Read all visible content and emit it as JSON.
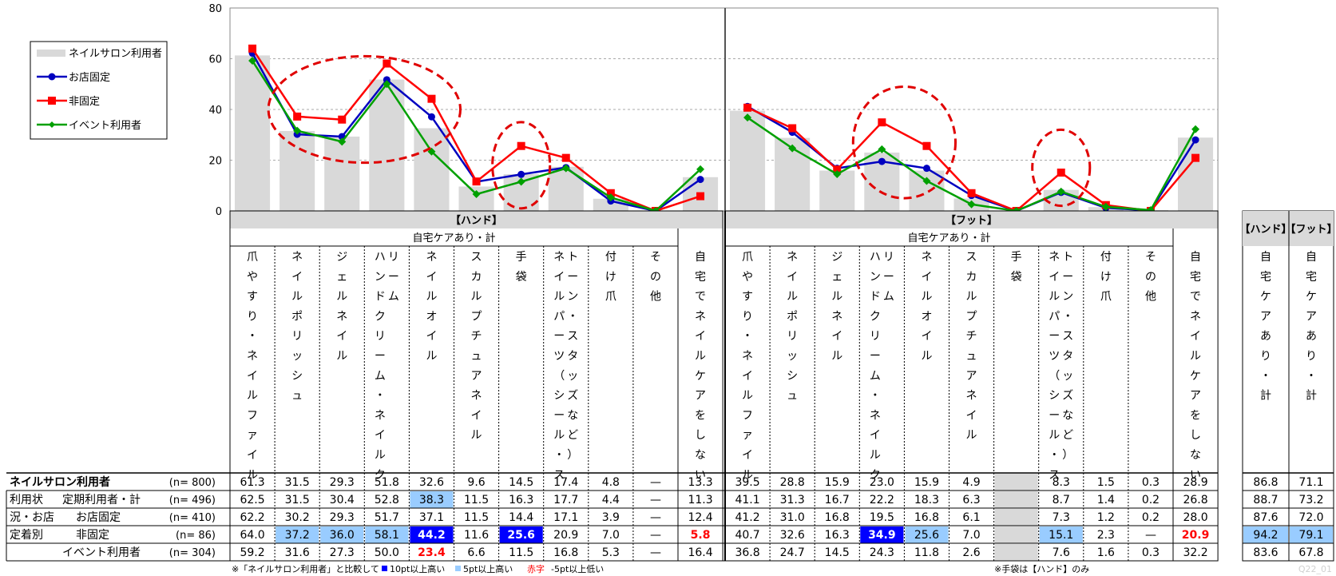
{
  "chart_data": {
    "type": "bar",
    "ylim": [
      0,
      80
    ],
    "yticks": [
      0,
      20,
      40,
      60,
      80
    ],
    "grid": true,
    "legend_position": "top-left",
    "legend": {
      "bar": "ネイルサロン利用者",
      "lines": [
        "お店固定",
        "非固定",
        "イベント利用者"
      ]
    },
    "colors": {
      "bar": "#d9d9d9",
      "fixed": "#0000c0",
      "nonfixed": "#ff0000",
      "event": "#00a000"
    },
    "sections": [
      {
        "header": "【ハンド】",
        "subheader": "自宅ケアあり・計",
        "categories": [
          "爪やすり・ネイルファイル",
          "ネイルポリッシュ",
          "ジェルネイル",
          "ハンドクリーム・ネイルクリーム",
          "ネイルオイル",
          "スカルプチュアネイル",
          "手袋",
          "ネイルパーツ（シール・ストーン・スタッズなど）",
          "付け爪",
          "その他",
          "自宅でネイルケアをしない"
        ],
        "labels_v": [
          [
            "爪やすり・ネイルファイル"
          ],
          [
            "ネイルポリッシュ"
          ],
          [
            "ジェルネイル"
          ],
          [
            "ハンドクリーム・ネイルク",
            "リーム"
          ],
          [
            "ネイルオイル"
          ],
          [
            "スカルプチュアネイル"
          ],
          [
            "手袋"
          ],
          [
            "ネイルパーツ（シール・ス",
            "トーン・スタッズなど）"
          ],
          [
            "付け爪"
          ],
          [
            "その他"
          ],
          [
            "自宅でネイルケアをしない"
          ]
        ],
        "series": {
          "salon": [
            61.3,
            31.5,
            29.3,
            51.8,
            32.6,
            9.6,
            14.5,
            17.4,
            4.8,
            null,
            13.3
          ],
          "regular": [
            62.5,
            31.5,
            30.4,
            52.8,
            38.3,
            11.5,
            16.3,
            17.7,
            4.4,
            null,
            11.3
          ],
          "fixed": [
            62.2,
            30.2,
            29.3,
            51.7,
            37.1,
            11.5,
            14.4,
            17.1,
            3.9,
            null,
            12.4
          ],
          "nonfixed": [
            64.0,
            37.2,
            36.0,
            58.1,
            44.2,
            11.6,
            25.6,
            20.9,
            7.0,
            null,
            5.8
          ],
          "event": [
            59.2,
            31.6,
            27.3,
            50.0,
            23.4,
            6.6,
            11.5,
            16.8,
            5.3,
            null,
            16.4
          ]
        },
        "line_values": {
          "fixed": [
            62.2,
            30.2,
            29.3,
            51.7,
            37.1,
            11.5,
            14.4,
            17.1,
            3.9,
            0,
            12.4
          ],
          "nonfixed": [
            64.0,
            37.2,
            36.0,
            58.1,
            44.2,
            11.6,
            25.6,
            20.9,
            7.0,
            0,
            5.8
          ],
          "event": [
            59.2,
            31.6,
            27.3,
            50.0,
            23.4,
            6.6,
            11.5,
            16.8,
            5.3,
            0,
            16.4
          ]
        },
        "highlights": {
          "regular": [
            "",
            "",
            "",
            "",
            "light",
            "",
            "",
            "",
            "",
            "",
            ""
          ],
          "nonfixed": [
            "",
            "light",
            "light",
            "light",
            "dark",
            "",
            "dark",
            "",
            "",
            "",
            "red"
          ],
          "event": [
            "",
            "",
            "",
            "",
            "red",
            "",
            "",
            "",
            "",
            "",
            ""
          ]
        },
        "circles": [
          {
            "from": 1,
            "to": 4,
            "yc": 40,
            "ry": 21
          },
          {
            "from": 6,
            "to": 6,
            "yc": 18,
            "ry": 17
          }
        ]
      },
      {
        "header": "【フット】",
        "subheader": "自宅ケアあり・計",
        "categories": [
          "爪やすり・ネイルファイル",
          "ネイルポリッシュ",
          "ジェルネイル",
          "ハンドクリーム・ネイルクリーム",
          "ネイルオイル",
          "スカルプチュアネイル",
          "手袋",
          "ネイルパーツ（シール・ストーン・スタッズなど）",
          "付け爪",
          "その他",
          "自宅でネイルケアをしない"
        ],
        "labels_v": [
          [
            "爪やすり・ネイルファイル"
          ],
          [
            "ネイルポリッシュ"
          ],
          [
            "ジェルネイル"
          ],
          [
            "ハンドクリーム・ネイルク",
            "リーム"
          ],
          [
            "ネイルオイル"
          ],
          [
            "スカルプチュアネイル"
          ],
          [
            "手袋"
          ],
          [
            "ネイルパーツ（シール・ス",
            "トーン・スタッズなど）"
          ],
          [
            "付け爪"
          ],
          [
            "その他"
          ],
          [
            "自宅でネイルケアをしない"
          ]
        ],
        "series": {
          "salon": [
            39.5,
            28.8,
            15.9,
            23.0,
            15.9,
            4.9,
            null,
            8.3,
            1.5,
            0.3,
            28.9
          ],
          "regular": [
            41.1,
            31.3,
            16.7,
            22.2,
            18.3,
            6.3,
            null,
            8.7,
            1.4,
            0.2,
            26.8
          ],
          "fixed": [
            41.2,
            31.0,
            16.8,
            19.5,
            16.8,
            6.1,
            null,
            7.3,
            1.2,
            0.2,
            28.0
          ],
          "nonfixed": [
            40.7,
            32.6,
            16.3,
            34.9,
            25.6,
            7.0,
            null,
            15.1,
            2.3,
            null,
            20.9
          ],
          "event": [
            36.8,
            24.7,
            14.5,
            24.3,
            11.8,
            2.6,
            null,
            7.6,
            1.6,
            0.3,
            32.2
          ]
        },
        "line_values": {
          "fixed": [
            41.2,
            31.0,
            16.8,
            19.5,
            16.8,
            6.1,
            0,
            7.3,
            1.2,
            0.2,
            28.0
          ],
          "nonfixed": [
            40.7,
            32.6,
            16.3,
            34.9,
            25.6,
            7.0,
            0,
            15.1,
            2.3,
            0,
            20.9
          ],
          "event": [
            36.8,
            24.7,
            14.5,
            24.3,
            11.8,
            2.6,
            0,
            7.6,
            1.6,
            0.3,
            32.2
          ]
        },
        "highlights": {
          "regular": [
            "",
            "",
            "",
            "",
            "",
            "",
            "",
            "",
            "",
            "",
            ""
          ],
          "nonfixed": [
            "",
            "",
            "",
            "dark",
            "light",
            "",
            "",
            "light",
            "",
            "",
            "red"
          ],
          "event": [
            "",
            "",
            "",
            "",
            "",
            "",
            "",
            "",
            "",
            "",
            ""
          ]
        },
        "circles": [
          {
            "from": 3,
            "to": 4,
            "yc": 27,
            "ry": 22
          },
          {
            "from": 7,
            "to": 7,
            "yc": 17,
            "ry": 15
          }
        ]
      }
    ],
    "summary": {
      "headers": [
        "【ハンド】",
        "【フット】"
      ],
      "label": "自宅ケアあり・計",
      "values": {
        "salon": [
          86.8,
          71.1
        ],
        "regular": [
          88.7,
          73.2
        ],
        "fixed": [
          87.6,
          72.0
        ],
        "nonfixed": [
          94.2,
          79.1
        ],
        "event": [
          83.6,
          67.8
        ]
      },
      "highlights": {
        "nonfixed": [
          "light",
          "light"
        ]
      }
    },
    "rows": [
      {
        "key": "salon",
        "group": "ネイルサロン利用者",
        "label": "",
        "n": "(n= 800)",
        "bold": true
      },
      {
        "key": "regular",
        "group": "利用状",
        "label": "定期利用者・計",
        "n": "(n= 496)"
      },
      {
        "key": "fixed",
        "group": "況・お店",
        "label": "お店固定",
        "n": "(n= 410)"
      },
      {
        "key": "nonfixed",
        "group": "定着別",
        "label": "非固定",
        "n": "(n=  86)"
      },
      {
        "key": "event",
        "group": "",
        "label": "イベント利用者",
        "n": "(n= 304)"
      }
    ],
    "dash": "—",
    "note_left": "※「ネイルサロン利用者」と比較して",
    "note_10": "10pt以上高い",
    "note_5": "5pt以上高い",
    "note_red1": "赤字",
    "note_red2": "-5pt以上低い",
    "note_right": "※手袋は【ハンド】のみ",
    "page_id": "Q22_01"
  }
}
